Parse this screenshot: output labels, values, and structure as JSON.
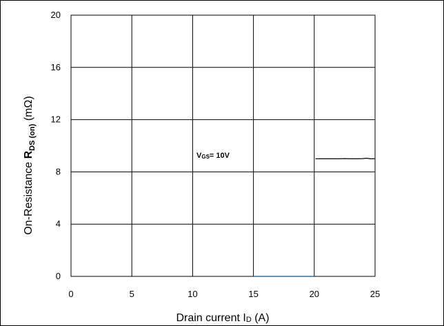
{
  "chart_data": {
    "type": "line",
    "xlabel": {
      "prefix": "Drain current I",
      "sub": "D",
      "suffix": " (A)"
    },
    "ylabel": {
      "prefix": "On-Resistance ",
      "bold": "R",
      "sub": "DS (on)",
      "suffix": " (mΩ)"
    },
    "xlim": [
      0,
      25
    ],
    "ylim": [
      0,
      20
    ],
    "xticks": [
      "0",
      "5",
      "10",
      "15",
      "20",
      "25"
    ],
    "yticks": [
      "0",
      "4",
      "8",
      "12",
      "16",
      "20"
    ],
    "grid": true,
    "annotation": {
      "main": "V",
      "sub": "GS",
      "rest": "= 10V"
    },
    "series": [
      {
        "color": "#000000",
        "x": [
          20.1,
          21.0,
          22.0,
          22.5,
          23.0,
          23.5,
          24.0,
          24.3,
          24.6,
          25.0
        ],
        "y": [
          9.0,
          9.0,
          9.0,
          9.02,
          9.0,
          9.0,
          9.02,
          9.05,
          9.0,
          9.0
        ]
      }
    ],
    "highlight_segment": {
      "x": [
        15,
        20
      ],
      "y": 0,
      "color": "#2e6da4"
    }
  }
}
